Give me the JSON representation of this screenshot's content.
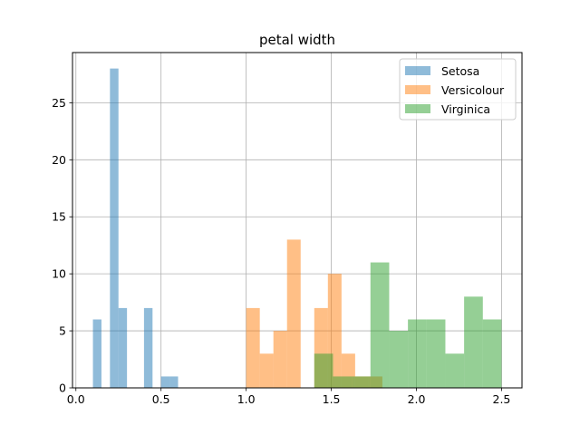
{
  "chart_data": {
    "type": "histogram",
    "title": "petal width",
    "xlabel": "",
    "ylabel": "",
    "xlim": [
      -0.02,
      2.62
    ],
    "ylim": [
      0,
      29.4
    ],
    "xticks": [
      0.0,
      0.5,
      1.0,
      1.5,
      2.0,
      2.5
    ],
    "xtick_labels": [
      "0.0",
      "0.5",
      "1.0",
      "1.5",
      "2.0",
      "2.5"
    ],
    "yticks": [
      0,
      5,
      10,
      15,
      20,
      25
    ],
    "ytick_labels": [
      "0",
      "5",
      "10",
      "15",
      "20",
      "25"
    ],
    "grid": true,
    "legend_position": "top-right",
    "series": [
      {
        "name": "Setosa",
        "color": "#1f77b4",
        "bin_edges": [
          0.1,
          0.15,
          0.2,
          0.25,
          0.3,
          0.35,
          0.4,
          0.45,
          0.5,
          0.55,
          0.6
        ],
        "counts": [
          6,
          0,
          28,
          7,
          0,
          0,
          7,
          0,
          1,
          1
        ]
      },
      {
        "name": "Versicolour",
        "color": "#ff7f0e",
        "bin_edges": [
          1.0,
          1.08,
          1.16,
          1.24,
          1.32,
          1.4,
          1.48,
          1.56,
          1.64,
          1.72,
          1.8
        ],
        "counts": [
          7,
          3,
          5,
          13,
          0,
          7,
          10,
          3,
          1,
          1
        ]
      },
      {
        "name": "Virginica",
        "color": "#2ca02c",
        "bin_edges": [
          1.4,
          1.51,
          1.62,
          1.73,
          1.84,
          1.95,
          2.06,
          2.17,
          2.28,
          2.39,
          2.5
        ],
        "counts": [
          3,
          1,
          1,
          11,
          5,
          6,
          6,
          3,
          8,
          6
        ]
      }
    ]
  }
}
